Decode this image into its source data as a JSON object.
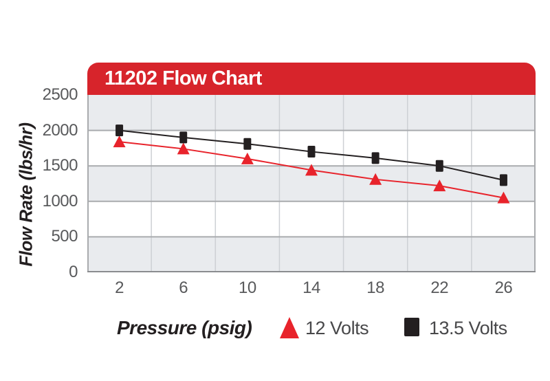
{
  "chart_data": {
    "type": "line",
    "title": "11202 Flow Chart",
    "xlabel": "Pressure (psig)",
    "ylabel": "Flow Rate (lbs/hr)",
    "categories": [
      2,
      6,
      10,
      14,
      18,
      22,
      26
    ],
    "y_ticks": [
      2500,
      2000,
      1500,
      1000,
      500,
      0
    ],
    "ylim": [
      0,
      2500
    ],
    "grid": "horizontal gridlines every 500 with alternating gray/white bands; vertical gridlines between categories",
    "legend_position": "bottom",
    "series": [
      {
        "name": "12 Volts",
        "marker": "triangle",
        "color": "#e8232b",
        "values": [
          1840,
          1740,
          1600,
          1440,
          1310,
          1220,
          1050
        ]
      },
      {
        "name": "13.5 Volts",
        "marker": "square",
        "color": "#231f20",
        "values": [
          2000,
          1900,
          1810,
          1700,
          1610,
          1500,
          1300
        ]
      }
    ]
  },
  "colors": {
    "header_red": "#d7242b",
    "band_gray": "#e9ebee",
    "grid_major": "#a9abae",
    "grid_vertical": "#cdd0d4",
    "plot_bottom_border": "#8a8c8f",
    "tick_text": "#58595b",
    "legend_text": "#48484a",
    "title_text": "#ffffff",
    "axis_title_text": "#231f20"
  }
}
